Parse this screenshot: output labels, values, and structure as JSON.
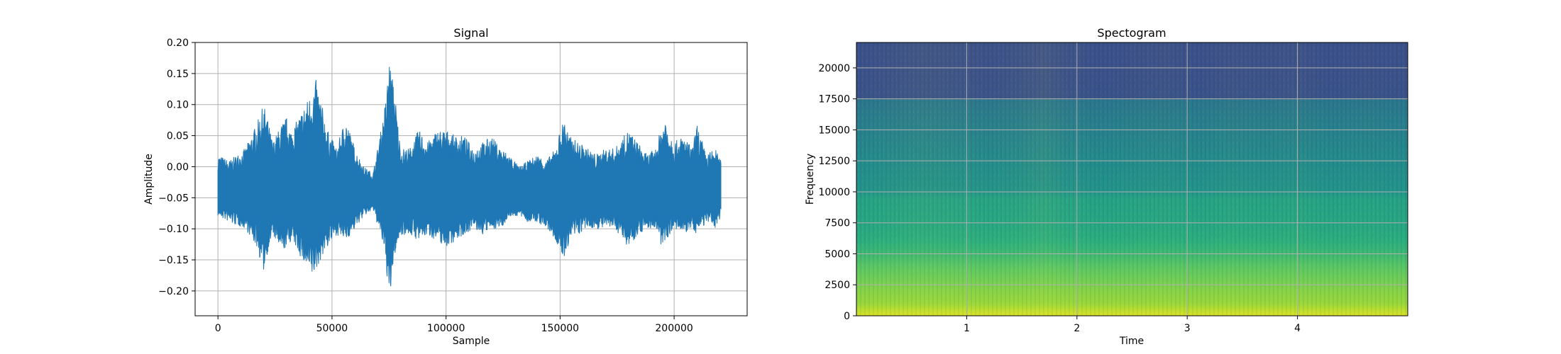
{
  "chart_data": [
    {
      "type": "line",
      "title": "Signal",
      "xlabel": "Sample",
      "ylabel": "Amplitude",
      "xlim": [
        -10000,
        232000
      ],
      "ylim": [
        -0.24,
        0.2
      ],
      "x_ticks": [
        0,
        50000,
        100000,
        150000,
        200000
      ],
      "x_tick_labels": [
        "0",
        "50000",
        "100000",
        "150000",
        "200000"
      ],
      "y_ticks": [
        -0.2,
        -0.15,
        -0.1,
        -0.05,
        0.0,
        0.05,
        0.1,
        0.15,
        0.2
      ],
      "y_tick_labels": [
        "−0.20",
        "−0.15",
        "−0.10",
        "−0.05",
        "0.00",
        "0.05",
        "0.10",
        "0.15",
        "0.20"
      ],
      "grid": true,
      "color": "#1f77b4",
      "baseline": -0.04,
      "x_range": [
        0,
        220500
      ],
      "envelope": {
        "x": [
          0,
          5000,
          12000,
          17000,
          20000,
          21000,
          24000,
          28000,
          30000,
          32000,
          34000,
          38000,
          41000,
          43000,
          45000,
          48000,
          52000,
          56000,
          60000,
          64000,
          68000,
          72000,
          74000,
          75000,
          76000,
          77000,
          80000,
          84000,
          88000,
          92000,
          96000,
          100000,
          104000,
          108000,
          112000,
          116000,
          120000,
          124000,
          128000,
          132000,
          136000,
          140000,
          144000,
          148000,
          150000,
          152000,
          154000,
          158000,
          162000,
          166000,
          170000,
          174000,
          178000,
          180000,
          184000,
          188000,
          192000,
          194000,
          196000,
          200000,
          204000,
          208000,
          210000,
          214000,
          218000,
          220500
        ],
        "upper": [
          0.02,
          0.01,
          0.03,
          0.07,
          0.1,
          0.09,
          0.04,
          0.07,
          0.08,
          0.06,
          0.07,
          0.1,
          0.12,
          0.14,
          0.11,
          0.06,
          0.03,
          0.08,
          0.03,
          0.0,
          -0.01,
          0.07,
          0.12,
          0.18,
          0.15,
          0.14,
          0.03,
          0.03,
          0.06,
          0.04,
          0.06,
          0.06,
          0.05,
          0.05,
          0.03,
          0.04,
          0.05,
          0.03,
          0.02,
          0.0,
          0.01,
          0.02,
          0.01,
          0.03,
          0.06,
          0.08,
          0.05,
          0.04,
          0.03,
          0.02,
          0.03,
          0.03,
          0.05,
          0.06,
          0.04,
          0.02,
          0.03,
          0.06,
          0.08,
          0.04,
          0.05,
          0.03,
          0.07,
          0.02,
          0.03,
          0.01
        ],
        "lower": [
          -0.08,
          -0.09,
          -0.1,
          -0.13,
          -0.17,
          -0.15,
          -0.11,
          -0.14,
          -0.13,
          -0.12,
          -0.13,
          -0.16,
          -0.18,
          -0.17,
          -0.15,
          -0.13,
          -0.11,
          -0.12,
          -0.1,
          -0.08,
          -0.07,
          -0.12,
          -0.17,
          -0.22,
          -0.2,
          -0.15,
          -0.11,
          -0.11,
          -0.12,
          -0.11,
          -0.12,
          -0.13,
          -0.12,
          -0.11,
          -0.1,
          -0.11,
          -0.1,
          -0.1,
          -0.08,
          -0.08,
          -0.09,
          -0.09,
          -0.1,
          -0.12,
          -0.14,
          -0.15,
          -0.12,
          -0.11,
          -0.1,
          -0.1,
          -0.1,
          -0.1,
          -0.12,
          -0.13,
          -0.11,
          -0.1,
          -0.1,
          -0.13,
          -0.12,
          -0.1,
          -0.11,
          -0.1,
          -0.11,
          -0.09,
          -0.1,
          -0.08
        ]
      }
    },
    {
      "type": "heatmap",
      "title": "Spectogram",
      "xlabel": "Time",
      "ylabel": "Frequency",
      "xlim": [
        0,
        5.0
      ],
      "ylim": [
        0,
        22050
      ],
      "x_ticks": [
        1,
        2,
        3,
        4
      ],
      "x_tick_labels": [
        "1",
        "2",
        "3",
        "4"
      ],
      "y_ticks": [
        0,
        2500,
        5000,
        7500,
        10000,
        12500,
        15000,
        17500,
        20000
      ],
      "y_tick_labels": [
        "0",
        "2500",
        "5000",
        "7500",
        "10000",
        "12500",
        "15000",
        "17500",
        "20000"
      ],
      "grid": true,
      "colormap": "viridis",
      "freq_profile": {
        "freq": [
          0,
          500,
          1000,
          2000,
          3000,
          4000,
          5000,
          6000,
          7500,
          9500,
          10000,
          12500,
          15000,
          17400,
          17600,
          20000,
          22050
        ],
        "level": [
          0.95,
          0.9,
          0.85,
          0.82,
          0.78,
          0.74,
          0.68,
          0.64,
          0.6,
          0.58,
          0.52,
          0.48,
          0.44,
          0.4,
          0.26,
          0.25,
          0.25
        ]
      },
      "time_profile": {
        "time": [
          0,
          0.3,
          0.6,
          0.9,
          1.2,
          1.5,
          1.7,
          1.9,
          2.2,
          2.5,
          2.8,
          3.1,
          3.4,
          3.7,
          4.0,
          4.3,
          4.6,
          5.0
        ],
        "level": [
          0.0,
          0.02,
          0.04,
          0.03,
          0.01,
          0.03,
          0.06,
          0.02,
          0.0,
          0.01,
          0.02,
          0.0,
          0.02,
          0.01,
          0.02,
          0.0,
          0.01,
          0.0
        ]
      }
    }
  ]
}
